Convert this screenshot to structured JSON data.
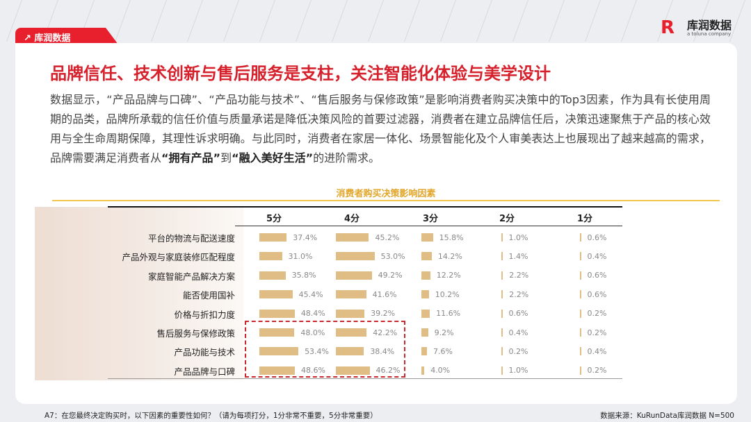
{
  "header": {
    "tab_label": "↗ 库润数据",
    "logo_name": "库润数据",
    "logo_sub": "a toluna company"
  },
  "title": "品牌信任、技术创新与售后服务是支柱，关注智能化体验与美学设计",
  "paragraph": {
    "p1": "数据显示，“产品品牌与口碑”、“产品功能与技术”、“售后服务与保修政策”是影响消费者购买决策中的Top3因素，作为具有长使用周期的品类，品牌所承载的信任价值与质量承诺是降低决策风险的首要过滤器，消费者在建立品牌信任后，决策迅速聚焦于产品的核心效用与全生命周期保障，其理性诉求明确。与此同时，消费者在家居一体化、场景智能化及个人审美表达上也展现出了越来越高的需求，品牌需要满足消费者从",
    "b1": "“拥有产品”",
    "p2": "到",
    "b2": "“融入美好生活”",
    "p3": "的进阶需求。"
  },
  "chart_data": {
    "type": "table",
    "title": "消费者购买决策影响因素",
    "columns": [
      "5分",
      "4分",
      "3分",
      "2分",
      "1分"
    ],
    "rows": [
      {
        "label": "平台的物流与配送速度",
        "values": [
          37.4,
          45.2,
          15.8,
          1.0,
          0.6
        ]
      },
      {
        "label": "产品外观与家庭装修匹配程度",
        "values": [
          31.0,
          53.0,
          14.2,
          1.4,
          0.4
        ]
      },
      {
        "label": "家庭智能产品解决方案",
        "values": [
          35.8,
          49.2,
          12.2,
          2.2,
          0.6
        ]
      },
      {
        "label": "能否使用国补",
        "values": [
          45.4,
          41.6,
          10.2,
          2.2,
          0.6
        ]
      },
      {
        "label": "价格与折扣力度",
        "values": [
          48.4,
          39.2,
          11.6,
          0.6,
          0.2
        ]
      },
      {
        "label": "售后服务与保修政策",
        "values": [
          48.0,
          42.2,
          9.2,
          0.4,
          0.2
        ]
      },
      {
        "label": "产品功能与技术",
        "values": [
          53.4,
          38.4,
          7.6,
          0.2,
          0.4
        ]
      },
      {
        "label": "产品品牌与口碑",
        "values": [
          48.6,
          46.2,
          4.0,
          1.0,
          0.2
        ]
      }
    ],
    "highlight_rows": [
      "售后服务与保修政策",
      "产品功能与技术",
      "产品品牌与口碑"
    ],
    "bar_color": "#e0bd84",
    "highlight_color": "#c8282e"
  },
  "footer": {
    "question": "A7：在您最终决定购买时，以下因素的重要性如何？（请为每项打分，1分非常不重要，5分非常重要）",
    "source": "数据来源：KuRunData库润数据 N=500"
  }
}
